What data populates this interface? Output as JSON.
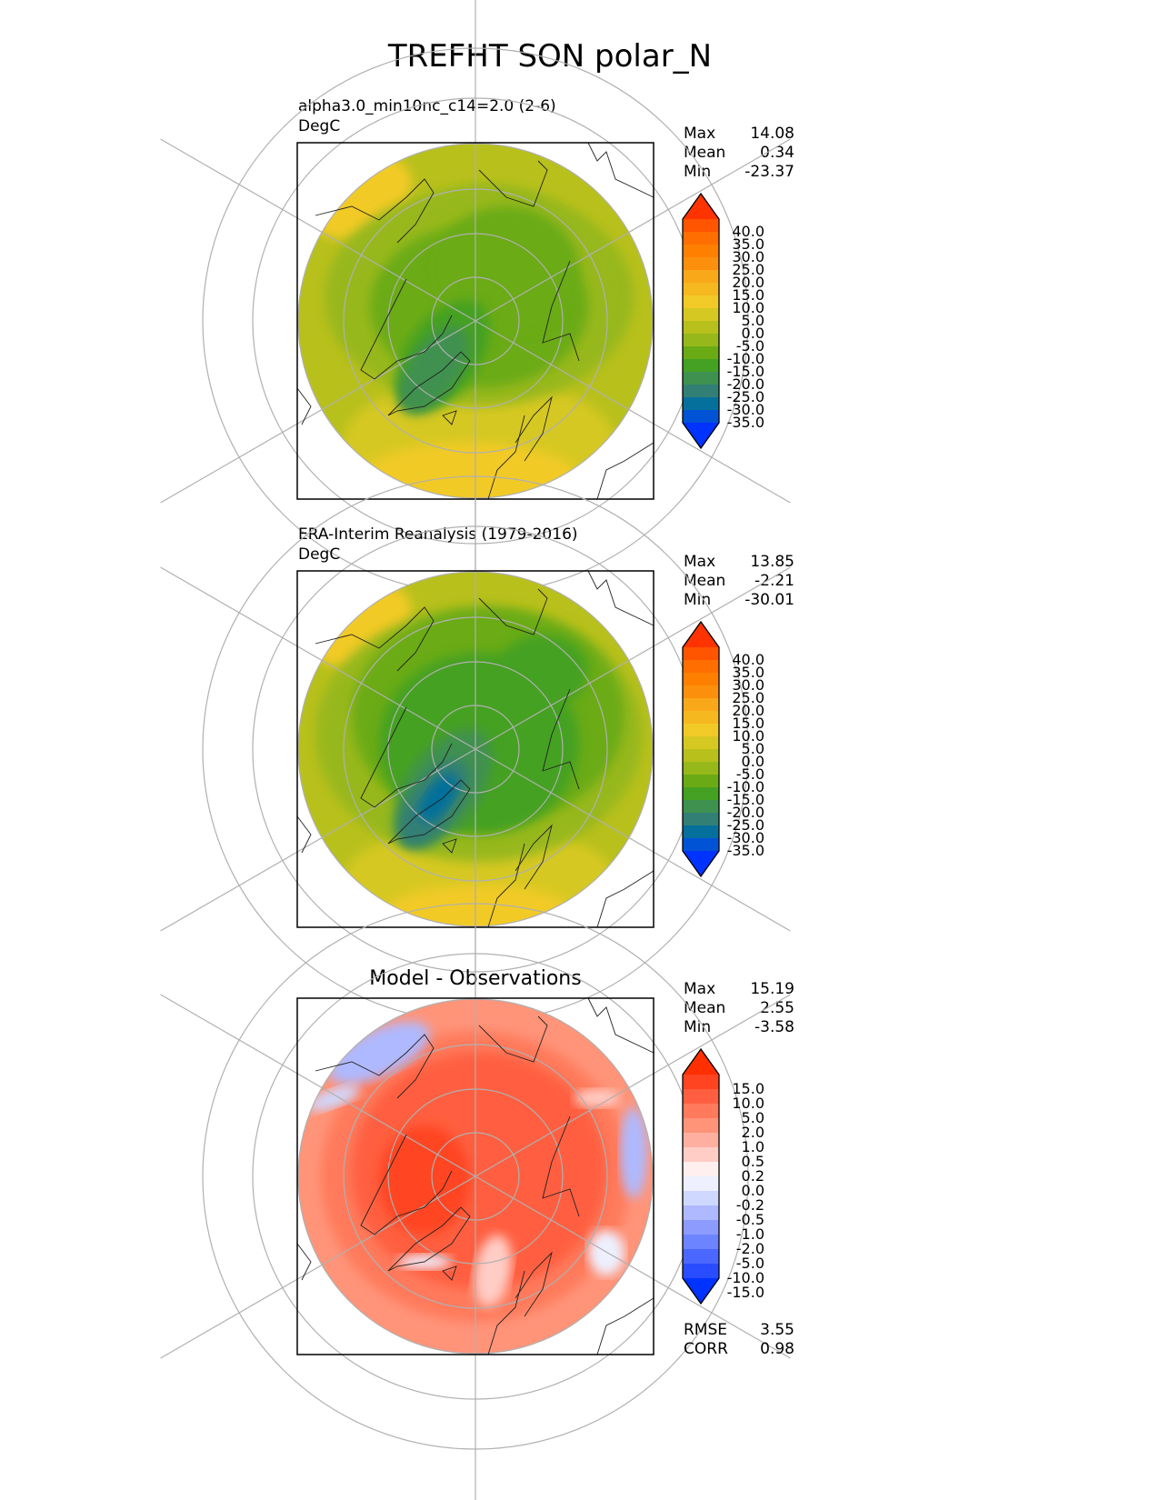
{
  "figure_title": "TREFHT SON polar_N",
  "panels": [
    {
      "title": "alpha3.0_min10nc_c14=2.0 (2-6)",
      "units": "DegC",
      "stats": [
        {
          "label": "Max",
          "value": "14.08"
        },
        {
          "label": "Mean",
          "value": "0.34"
        },
        {
          "label": "Min",
          "value": "-23.37"
        }
      ],
      "colorbar": {
        "ticks": [
          "40.0",
          "35.0",
          "30.0",
          "25.0",
          "20.0",
          "15.0",
          "10.0",
          "5.0",
          "0.0",
          "-5.0",
          "-10.0",
          "-15.0",
          "-20.0",
          "-25.0",
          "-30.0",
          "-35.0"
        ],
        "colors": [
          "#ff3300",
          "#ff5500",
          "#ff6e00",
          "#ff8000",
          "#fc8f0c",
          "#f9a81a",
          "#f5b81f",
          "#f2ca27",
          "#d6c822",
          "#b8c01c",
          "#97b81a",
          "#6aab15",
          "#45a123",
          "#3f9150",
          "#327f76",
          "#06709c",
          "#0053d4",
          "#0033ff"
        ]
      },
      "map_type": "absolute"
    },
    {
      "title": "ERA-Interim Reanalysis (1979-2016)",
      "units": "DegC",
      "stats": [
        {
          "label": "Max",
          "value": "13.85"
        },
        {
          "label": "Mean",
          "value": "-2.21"
        },
        {
          "label": "Min",
          "value": "-30.01"
        }
      ],
      "colorbar": {
        "ticks": [
          "40.0",
          "35.0",
          "30.0",
          "25.0",
          "20.0",
          "15.0",
          "10.0",
          "5.0",
          "0.0",
          "-5.0",
          "-10.0",
          "-15.0",
          "-20.0",
          "-25.0",
          "-30.0",
          "-35.0"
        ],
        "colors": [
          "#ff3300",
          "#ff5500",
          "#ff6e00",
          "#ff8000",
          "#fc8f0c",
          "#f9a81a",
          "#f5b81f",
          "#f2ca27",
          "#d6c822",
          "#b8c01c",
          "#97b81a",
          "#6aab15",
          "#45a123",
          "#3f9150",
          "#327f76",
          "#06709c",
          "#0053d4",
          "#0033ff"
        ]
      },
      "map_type": "absolute_obs"
    },
    {
      "title": "Model - Observations",
      "units": "",
      "stats": [
        {
          "label": "Max",
          "value": "15.19"
        },
        {
          "label": "Mean",
          "value": "2.55"
        },
        {
          "label": "Min",
          "value": "-3.58"
        }
      ],
      "colorbar": {
        "ticks": [
          "15.0",
          "10.0",
          "5.0",
          "2.0",
          "1.0",
          "0.5",
          "0.2",
          "0.0",
          "-0.2",
          "-0.5",
          "-1.0",
          "-2.0",
          "-5.0",
          "-10.0",
          "-15.0"
        ],
        "colors": [
          "#ff2f00",
          "#ff4422",
          "#ff5f40",
          "#ff7a5c",
          "#ff9479",
          "#ffafa0",
          "#ffcdc6",
          "#fff0ef",
          "#eef0ff",
          "#cfd8ff",
          "#aeb9ff",
          "#8d9bff",
          "#6c84ff",
          "#4a68ff",
          "#2a4cff",
          "#0033ff"
        ]
      },
      "extra_stats": [
        {
          "label": "RMSE",
          "value": "3.55"
        },
        {
          "label": "CORR",
          "value": "0.98"
        }
      ],
      "map_type": "difference"
    }
  ]
}
